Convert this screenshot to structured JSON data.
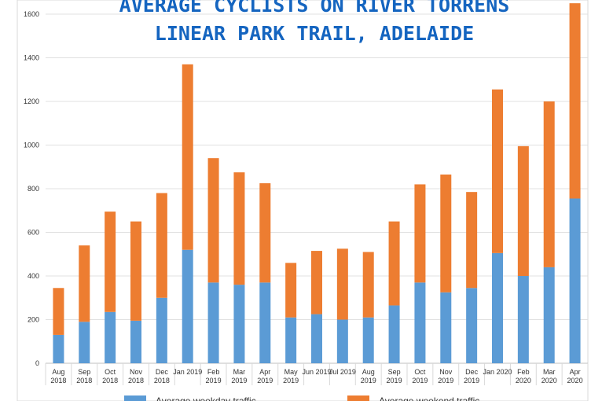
{
  "chart_data": {
    "type": "bar",
    "stacked": true,
    "title": [
      "AVERAGE CYCLISTS ON RIVER TORRENS",
      "LINEAR PARK TRAIL, ADELAIDE"
    ],
    "xlabel": "",
    "ylabel": "",
    "ylim": [
      0,
      1600
    ],
    "yticks": [
      0,
      200,
      400,
      600,
      800,
      1000,
      1200,
      1400,
      1600
    ],
    "grid": true,
    "legend_position": "bottom",
    "categories": [
      [
        "Aug",
        "2018"
      ],
      [
        "Sep",
        "2018"
      ],
      [
        "Oct",
        "2018"
      ],
      [
        "Nov",
        "2018"
      ],
      [
        "Dec",
        "2018"
      ],
      [
        "Jan 2019",
        ""
      ],
      [
        "Feb",
        "2019"
      ],
      [
        "Mar",
        "2019"
      ],
      [
        "Apr",
        "2019"
      ],
      [
        "May",
        "2019"
      ],
      [
        "Jun 2019",
        ""
      ],
      [
        "Jul 2019",
        ""
      ],
      [
        "Aug",
        "2019"
      ],
      [
        "Sep",
        "2019"
      ],
      [
        "Oct",
        "2019"
      ],
      [
        "Nov",
        "2019"
      ],
      [
        "Dec",
        "2019"
      ],
      [
        "Jan 2020",
        ""
      ],
      [
        "Feb",
        "2020"
      ],
      [
        "Mar",
        "2020"
      ],
      [
        "Apr",
        "2020"
      ]
    ],
    "series": [
      {
        "name": "Average weekday traffic",
        "color": "#5b9bd5",
        "values": [
          130,
          190,
          235,
          195,
          300,
          520,
          370,
          360,
          370,
          210,
          225,
          200,
          210,
          265,
          370,
          325,
          345,
          505,
          400,
          440,
          755
        ]
      },
      {
        "name": "Average weekend traffic",
        "color": "#ed7d31",
        "values": [
          215,
          350,
          460,
          455,
          480,
          850,
          570,
          515,
          455,
          250,
          290,
          325,
          300,
          385,
          450,
          540,
          440,
          750,
          595,
          760,
          895
        ]
      }
    ]
  }
}
